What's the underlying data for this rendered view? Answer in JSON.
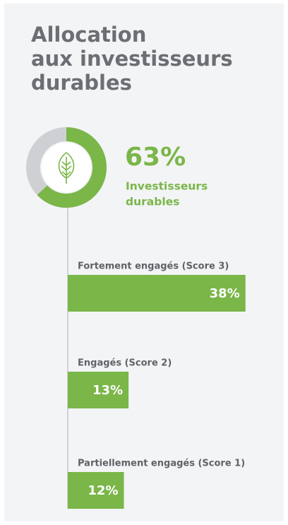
{
  "chart_data": {
    "type": "bar",
    "orientation": "horizontal",
    "title": [
      "Allocation",
      "aux investisseurs",
      "durables"
    ],
    "donut": {
      "value": 63,
      "value_label": "63%",
      "label": [
        "Investisseurs",
        "durables"
      ],
      "color": "#7ab648",
      "rest_color": "#cfd0d4"
    },
    "categories": [
      "Fortement engagés (Score 3)",
      "Engagés (Score 2)",
      "Partiellement engagés (Score 1)"
    ],
    "values": [
      38,
      13,
      12
    ],
    "value_labels": [
      "38%",
      "13%",
      "12%"
    ],
    "color": "#7ab648",
    "xlim": [
      0,
      40
    ]
  }
}
